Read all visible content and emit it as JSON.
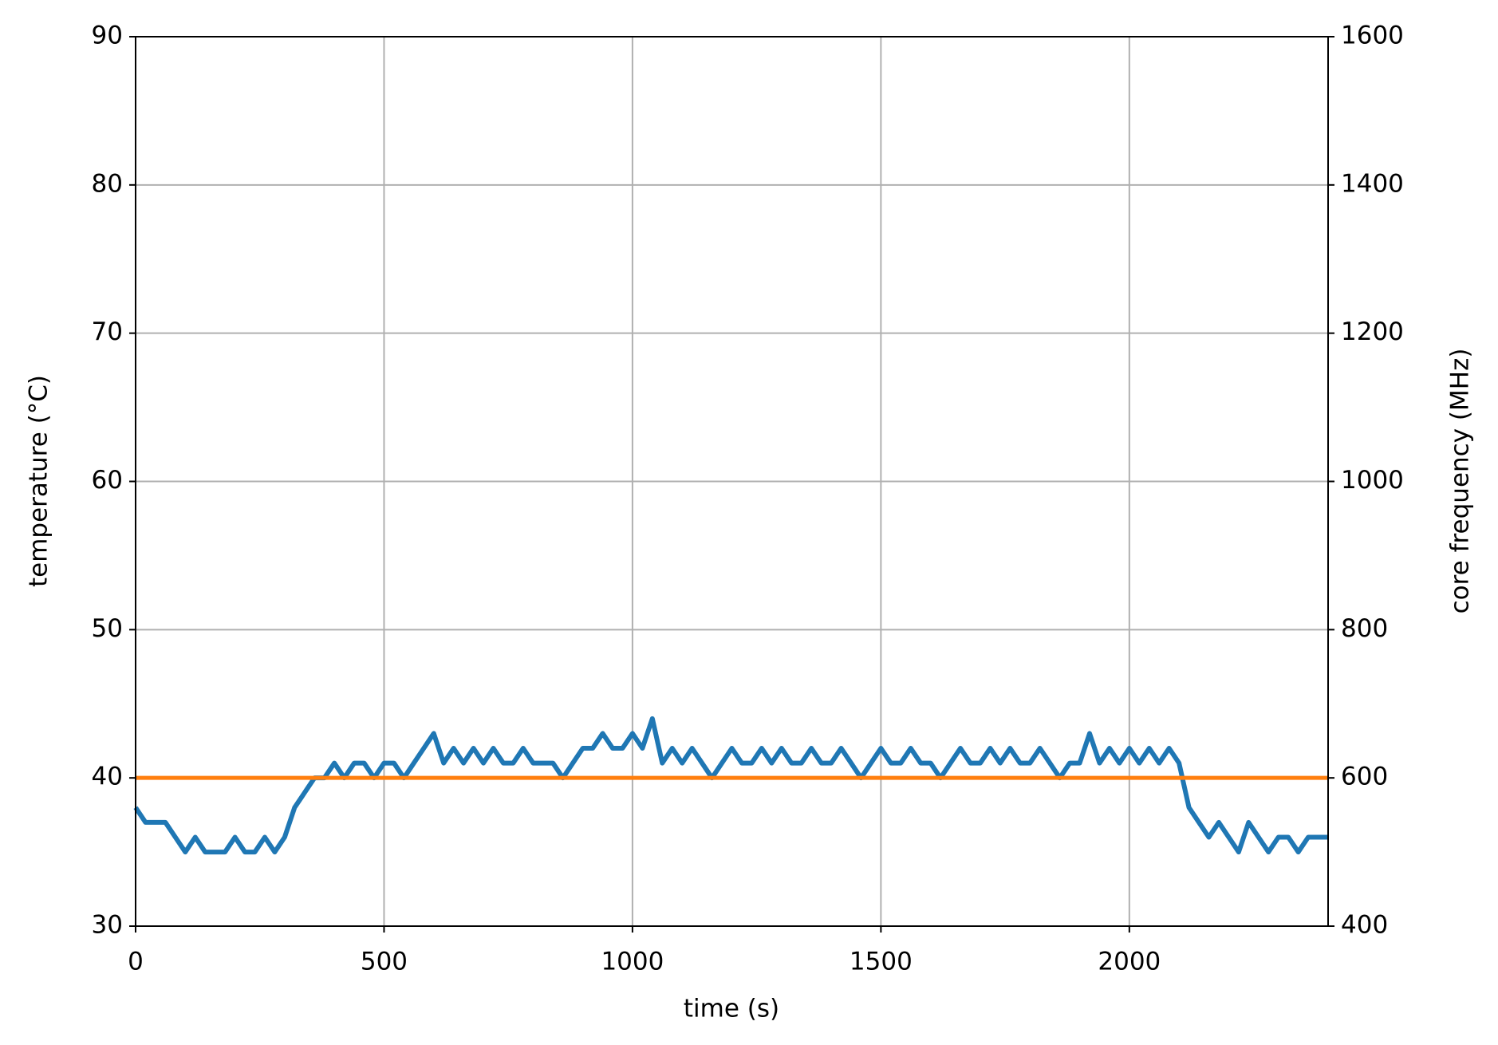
{
  "chart_data": {
    "type": "line",
    "xlabel": "time (s)",
    "ylabel": "temperature (°C)",
    "y2label": "core frequency (MHz)",
    "xlim": [
      0,
      2400
    ],
    "xticks": [
      0,
      500,
      1000,
      1500,
      2000
    ],
    "ylim": [
      30,
      90
    ],
    "yticks": [
      30,
      40,
      50,
      60,
      70,
      80,
      90
    ],
    "y2lim": [
      400,
      1600
    ],
    "y2ticks": [
      400,
      600,
      800,
      1000,
      1200,
      1400,
      1600
    ],
    "grid": true,
    "series": [
      {
        "color": "#1f77b4",
        "x": [
          0,
          20,
          40,
          60,
          80,
          100,
          120,
          140,
          160,
          180,
          200,
          220,
          240,
          260,
          280,
          300,
          320,
          340,
          360,
          380,
          400,
          420,
          440,
          460,
          480,
          500,
          520,
          540,
          560,
          580,
          600,
          620,
          640,
          660,
          680,
          700,
          720,
          740,
          760,
          780,
          800,
          820,
          840,
          860,
          880,
          900,
          920,
          940,
          960,
          980,
          1000,
          1020,
          1040,
          1060,
          1080,
          1100,
          1120,
          1140,
          1160,
          1180,
          1200,
          1220,
          1240,
          1260,
          1280,
          1300,
          1320,
          1340,
          1360,
          1380,
          1400,
          1420,
          1440,
          1460,
          1480,
          1500,
          1520,
          1540,
          1560,
          1580,
          1600,
          1620,
          1640,
          1660,
          1680,
          1700,
          1720,
          1740,
          1760,
          1780,
          1800,
          1820,
          1840,
          1860,
          1880,
          1900,
          1920,
          1940,
          1960,
          1980,
          2000,
          2020,
          2040,
          2060,
          2080,
          2100,
          2120,
          2140,
          2160,
          2180,
          2200,
          2220,
          2240,
          2260,
          2280,
          2300,
          2320,
          2340,
          2360,
          2380,
          2400
        ],
        "values": [
          38,
          37,
          37,
          37,
          36,
          35,
          36,
          35,
          35,
          35,
          36,
          35,
          35,
          36,
          35,
          36,
          38,
          39,
          40,
          40,
          41,
          40,
          41,
          41,
          40,
          41,
          41,
          40,
          41,
          42,
          43,
          41,
          42,
          41,
          42,
          41,
          42,
          41,
          41,
          42,
          41,
          41,
          41,
          40,
          41,
          42,
          42,
          43,
          42,
          42,
          43,
          42,
          44,
          41,
          42,
          41,
          42,
          41,
          40,
          41,
          42,
          41,
          41,
          42,
          41,
          42,
          41,
          41,
          42,
          41,
          41,
          42,
          41,
          40,
          41,
          42,
          41,
          41,
          42,
          41,
          41,
          40,
          41,
          42,
          41,
          41,
          42,
          41,
          42,
          41,
          41,
          42,
          41,
          40,
          41,
          41,
          43,
          41,
          42,
          41,
          42,
          41,
          42,
          41,
          42,
          41,
          38,
          37,
          36,
          37,
          36,
          35,
          37,
          36,
          35,
          36,
          36,
          35,
          36,
          36,
          36
        ]
      },
      {
        "color": "#ff7f0e",
        "axis": "y2",
        "x": [
          0,
          2400
        ],
        "values": [
          600,
          600
        ]
      }
    ]
  }
}
